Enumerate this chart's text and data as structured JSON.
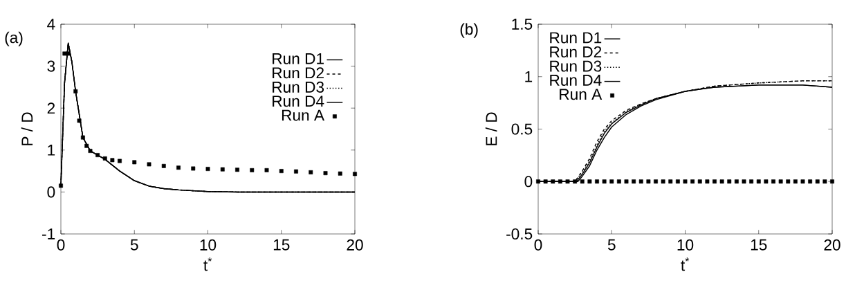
{
  "chart_data": [
    {
      "type": "line",
      "xlabel": "t$^{*}$",
      "ylabel": "P / D",
      "annotations": [
        "(a)"
      ],
      "xlim": [
        0,
        20
      ],
      "ylim": [
        -1,
        4
      ],
      "xticks": [
        0,
        5,
        10,
        15,
        20
      ],
      "yticks": [
        -1,
        0,
        1,
        2,
        3,
        4
      ],
      "legend": "top right",
      "series": [
        {
          "name": "Run D1",
          "color": "#000000",
          "line_style": "solid",
          "x": [
            0,
            0.25,
            0.5,
            0.75,
            1,
            1.5,
            2,
            2.5,
            3,
            4,
            5,
            6,
            7,
            8,
            10,
            12,
            15,
            20
          ],
          "values": [
            0.15,
            2.6,
            3.55,
            3.1,
            2.4,
            1.3,
            0.98,
            0.88,
            0.78,
            0.5,
            0.27,
            0.14,
            0.08,
            0.05,
            0.01,
            0,
            0,
            0
          ]
        },
        {
          "name": "Run D2",
          "color": "#000000",
          "line_style": "dashed",
          "x": [
            0,
            0.25,
            0.5,
            0.75,
            1,
            1.5,
            2,
            2.5,
            3,
            4,
            5,
            6,
            7,
            8,
            10,
            12,
            15,
            20
          ],
          "values": [
            0.15,
            2.6,
            3.55,
            3.1,
            2.4,
            1.3,
            0.98,
            0.88,
            0.78,
            0.5,
            0.27,
            0.14,
            0.08,
            0.05,
            0.01,
            0,
            0,
            0
          ]
        },
        {
          "name": "Run D3",
          "color": "#000000",
          "line_style": "dotted",
          "x": [
            0,
            0.25,
            0.5,
            0.75,
            1,
            1.5,
            2,
            2.5,
            3,
            4,
            5,
            6,
            7,
            8,
            10,
            12,
            15,
            20
          ],
          "values": [
            0.15,
            2.6,
            3.55,
            3.1,
            2.4,
            1.3,
            0.98,
            0.88,
            0.78,
            0.5,
            0.27,
            0.14,
            0.08,
            0.05,
            0.01,
            0,
            0,
            0
          ]
        },
        {
          "name": "Run D4",
          "color": "#000000",
          "line_style": "solid",
          "x": [
            0,
            0.25,
            0.5,
            0.75,
            1,
            1.5,
            2,
            2.5,
            3,
            4,
            5,
            6,
            7,
            8,
            10,
            12,
            15,
            20
          ],
          "values": [
            0.15,
            2.6,
            3.55,
            3.1,
            2.4,
            1.3,
            0.98,
            0.88,
            0.78,
            0.5,
            0.27,
            0.14,
            0.08,
            0.05,
            0.01,
            0,
            0,
            0
          ]
        },
        {
          "name": "Run A",
          "color": "#000000",
          "type": "scatter",
          "marker": "square",
          "x": [
            0,
            0.25,
            0.5,
            1,
            1.25,
            1.5,
            1.75,
            2,
            2.5,
            3,
            3.5,
            4,
            5,
            6,
            7,
            8,
            9,
            10,
            11,
            12,
            13,
            14,
            15,
            16,
            17,
            18,
            19,
            20
          ],
          "values": [
            0.15,
            3.3,
            3.3,
            2.4,
            1.7,
            1.3,
            1.1,
            0.98,
            0.88,
            0.8,
            0.76,
            0.74,
            0.71,
            0.66,
            0.62,
            0.58,
            0.56,
            0.55,
            0.54,
            0.53,
            0.52,
            0.52,
            0.5,
            0.49,
            0.47,
            0.45,
            0.44,
            0.43
          ]
        }
      ]
    },
    {
      "type": "line",
      "xlabel": "t$^{*}$",
      "ylabel": "E / D",
      "annotations": [
        "(b)"
      ],
      "xlim": [
        0,
        20
      ],
      "ylim": [
        -0.5,
        1.5
      ],
      "xticks": [
        0,
        5,
        10,
        15,
        20
      ],
      "yticks": [
        -0.5,
        0,
        0.5,
        1,
        1.5
      ],
      "legend": "top left",
      "series": [
        {
          "name": "Run D1",
          "color": "#000000",
          "line_style": "solid",
          "x": [
            0,
            2.7,
            3,
            3.5,
            4,
            4.5,
            5,
            6,
            7,
            8,
            10,
            12,
            15,
            18,
            20
          ],
          "values": [
            0,
            0,
            0.05,
            0.15,
            0.3,
            0.42,
            0.52,
            0.64,
            0.72,
            0.78,
            0.86,
            0.9,
            0.92,
            0.92,
            0.9
          ]
        },
        {
          "name": "Run D2",
          "color": "#000000",
          "line_style": "dashed",
          "x": [
            0,
            2.5,
            3,
            3.5,
            4,
            4.5,
            5,
            6,
            7,
            8,
            10,
            12,
            15,
            18,
            20
          ],
          "values": [
            0,
            0,
            0.1,
            0.22,
            0.38,
            0.5,
            0.58,
            0.68,
            0.74,
            0.79,
            0.86,
            0.91,
            0.94,
            0.96,
            0.96
          ]
        },
        {
          "name": "Run D3",
          "color": "#000000",
          "line_style": "dotted",
          "x": [
            0,
            2.5,
            3,
            3.5,
            4,
            4.5,
            5,
            6,
            7,
            8,
            10,
            12,
            15,
            18,
            20
          ],
          "values": [
            0,
            0,
            0.09,
            0.2,
            0.35,
            0.48,
            0.56,
            0.67,
            0.74,
            0.79,
            0.86,
            0.91,
            0.94,
            0.96,
            0.96
          ]
        },
        {
          "name": "Run D4",
          "color": "#000000",
          "line_style": "solid",
          "x": [
            0,
            2.6,
            3,
            3.5,
            4,
            4.5,
            5,
            6,
            7,
            8,
            10,
            12,
            15,
            18,
            20
          ],
          "values": [
            0,
            0,
            0.07,
            0.18,
            0.33,
            0.46,
            0.55,
            0.66,
            0.73,
            0.79,
            0.86,
            0.9,
            0.92,
            0.92,
            0.9
          ]
        },
        {
          "name": "Run A",
          "color": "#000000",
          "type": "scatter",
          "marker": "square",
          "x": [
            0,
            0.5,
            1,
            1.5,
            2,
            2.5,
            3,
            3.5,
            4,
            4.5,
            5,
            5.5,
            6,
            6.5,
            7,
            7.5,
            8,
            8.5,
            9,
            9.5,
            10,
            10.5,
            11,
            11.5,
            12,
            12.5,
            13,
            13.5,
            14,
            14.5,
            15,
            15.5,
            16,
            16.5,
            17,
            17.5,
            18,
            18.5,
            19,
            19.5,
            20
          ],
          "values": [
            0,
            0,
            0,
            0,
            0,
            0,
            0,
            0,
            0,
            0,
            0,
            0,
            0,
            0,
            0,
            0,
            0,
            0,
            0,
            0,
            0,
            0,
            0,
            0,
            0,
            0,
            0,
            0,
            0,
            0,
            0,
            0,
            0,
            0,
            0,
            0,
            0,
            0,
            0,
            0,
            0
          ]
        }
      ]
    }
  ]
}
